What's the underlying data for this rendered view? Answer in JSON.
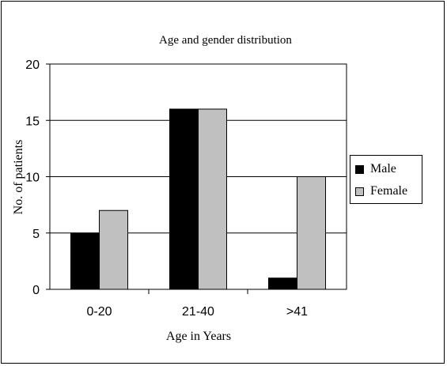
{
  "chart_data": {
    "type": "bar",
    "title": "Age and gender distribution",
    "xlabel": "Age in Years",
    "ylabel": "No. of patients",
    "categories": [
      "0-20",
      "21-40",
      ">41"
    ],
    "series": [
      {
        "name": "Male",
        "values": [
          5,
          16,
          1
        ],
        "color": "#000000"
      },
      {
        "name": "Female",
        "values": [
          7,
          16,
          10
        ],
        "color": "#c0c0c0"
      }
    ],
    "ylim": [
      0,
      20
    ],
    "yticks": [
      0,
      5,
      10,
      15,
      20
    ],
    "grid": true,
    "legend_position": "right"
  }
}
